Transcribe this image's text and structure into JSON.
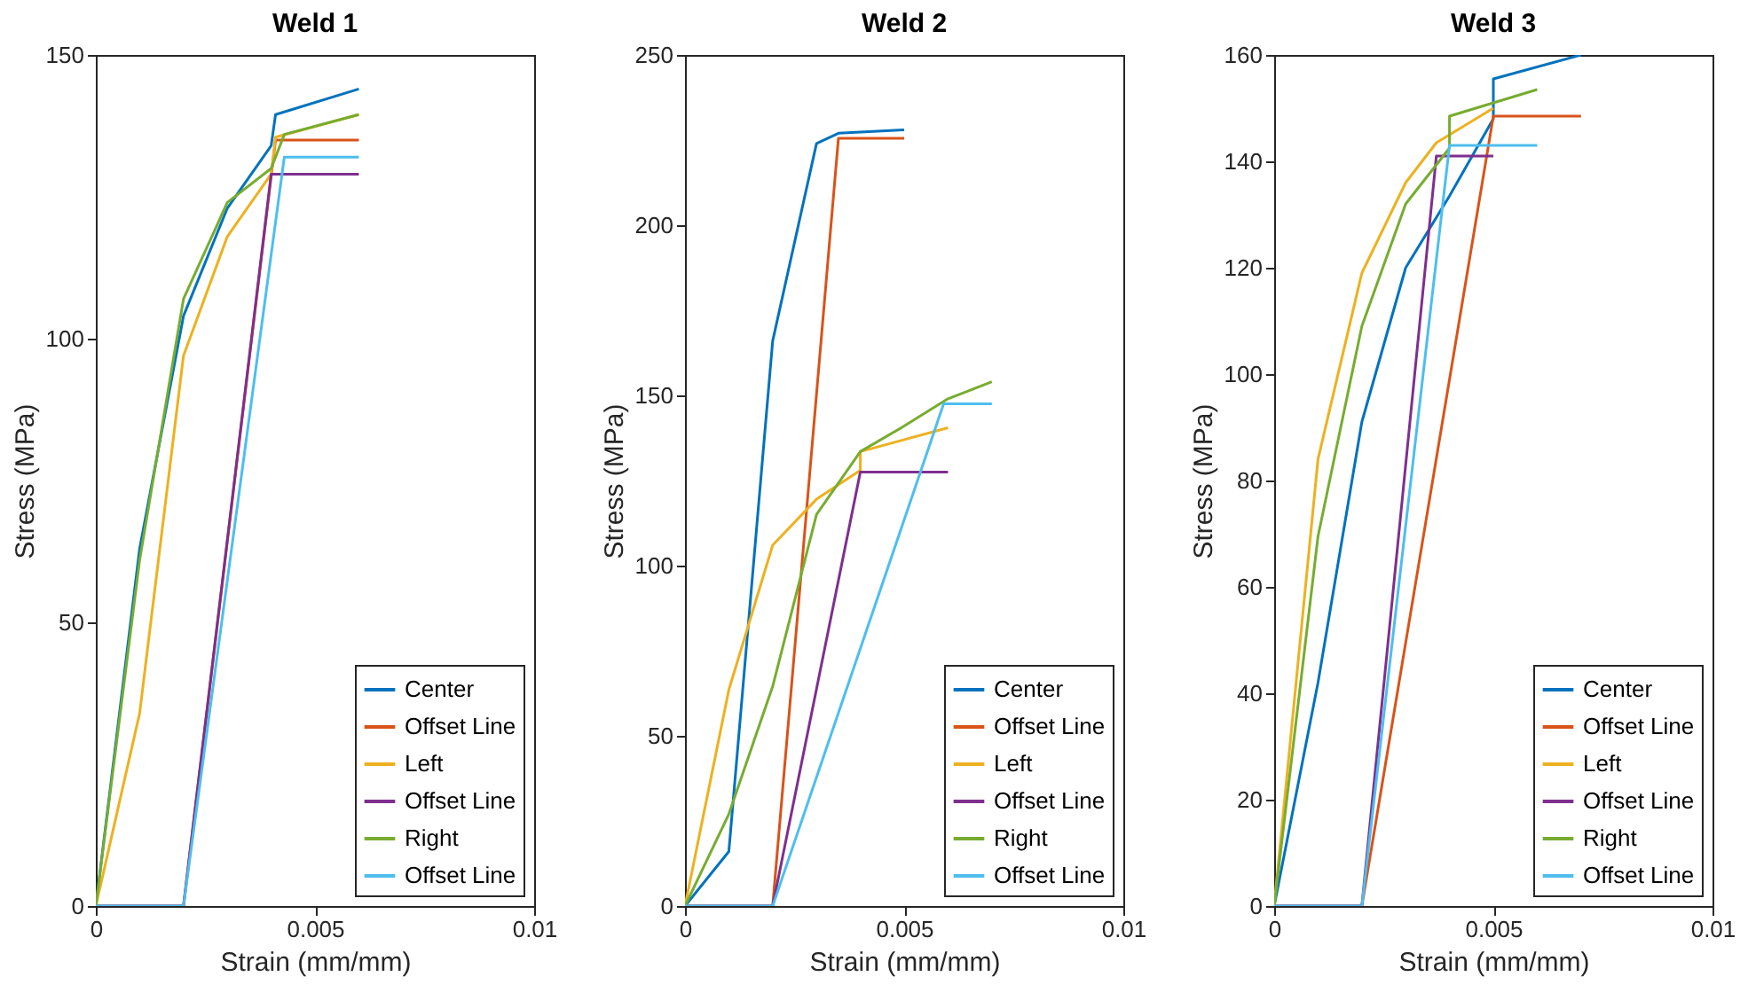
{
  "chart_data": [
    {
      "type": "line",
      "title": "Weld 1",
      "xlabel": "Strain (mm/mm)",
      "ylabel": "Stress (MPa)",
      "xlim": [
        0,
        0.01
      ],
      "xticks": [
        0,
        0.005,
        0.01
      ],
      "ylim": [
        0,
        150
      ],
      "yticks": [
        0,
        50,
        100,
        150
      ],
      "legend": "bottom right",
      "series": [
        {
          "name": "Center",
          "color": "#0072bd",
          "x": [
            0,
            0.001,
            0.002,
            0.003,
            0.004,
            0.0041,
            0.006
          ],
          "values": [
            0,
            63,
            104,
            123,
            134,
            139.5,
            144
          ]
        },
        {
          "name": "Offset Line",
          "color": "#d95319",
          "x": [
            0,
            0.002,
            0.0041,
            0.006
          ],
          "values": [
            0,
            0,
            135,
            135
          ]
        },
        {
          "name": "Left",
          "color": "#edb120",
          "x": [
            0,
            0.001,
            0.002,
            0.003,
            0.004,
            0.0041,
            0.006
          ],
          "values": [
            0,
            34,
            97,
            118,
            129,
            135.5,
            139.5
          ]
        },
        {
          "name": "Offset Line",
          "color": "#7e2f8e",
          "x": [
            0,
            0.002,
            0.004,
            0.006
          ],
          "values": [
            0,
            0,
            129,
            129
          ]
        },
        {
          "name": "Right",
          "color": "#77ac30",
          "x": [
            0,
            0.001,
            0.002,
            0.003,
            0.004,
            0.0043,
            0.006
          ],
          "values": [
            0,
            61,
            107,
            124,
            130,
            136,
            139.5
          ]
        },
        {
          "name": "Offset Line",
          "color": "#4dbeee",
          "x": [
            0,
            0.002,
            0.0043,
            0.006
          ],
          "values": [
            0,
            0,
            132,
            132
          ]
        }
      ]
    },
    {
      "type": "line",
      "title": "Weld 2",
      "xlabel": "Strain (mm/mm)",
      "ylabel": "Stress (MPa)",
      "xlim": [
        0,
        0.01
      ],
      "xticks": [
        0,
        0.005,
        0.01
      ],
      "ylim": [
        0,
        250
      ],
      "yticks": [
        0,
        50,
        100,
        150,
        200,
        250
      ],
      "legend": "bottom right",
      "series": [
        {
          "name": "Center",
          "color": "#0072bd",
          "x": [
            0,
            0.001,
            0.002,
            0.003,
            0.0035,
            0.005
          ],
          "values": [
            0,
            16,
            166,
            224,
            227,
            228
          ]
        },
        {
          "name": "Offset Line",
          "color": "#d95319",
          "x": [
            0,
            0.002,
            0.0035,
            0.005
          ],
          "values": [
            0,
            0,
            225.5,
            225.5
          ]
        },
        {
          "name": "Left",
          "color": "#edb120",
          "x": [
            0,
            0.001,
            0.002,
            0.003,
            0.004,
            0.004,
            0.006
          ],
          "values": [
            0,
            63.5,
            106,
            119.5,
            128,
            133.5,
            140.5
          ]
        },
        {
          "name": "Offset Line",
          "color": "#7e2f8e",
          "x": [
            0,
            0.002,
            0.004,
            0.006
          ],
          "values": [
            0,
            0,
            127.5,
            127.5
          ]
        },
        {
          "name": "Right",
          "color": "#77ac30",
          "x": [
            0,
            0.001,
            0.002,
            0.003,
            0.004,
            0.005,
            0.006,
            0.007
          ],
          "values": [
            0,
            27,
            64.5,
            115,
            133.5,
            141,
            149,
            154
          ]
        },
        {
          "name": "Offset Line",
          "color": "#4dbeee",
          "x": [
            0,
            0.002,
            0.0059,
            0.007
          ],
          "values": [
            0,
            0,
            147.5,
            147.5
          ]
        }
      ]
    },
    {
      "type": "line",
      "title": "Weld 3",
      "xlabel": "Strain (mm/mm)",
      "ylabel": "Stress (MPa)",
      "xlim": [
        0,
        0.01
      ],
      "xticks": [
        0,
        0.005,
        0.01
      ],
      "ylim": [
        0,
        160
      ],
      "yticks": [
        0,
        20,
        40,
        60,
        80,
        100,
        120,
        140,
        160
      ],
      "legend": "bottom right",
      "series": [
        {
          "name": "Center",
          "color": "#0072bd",
          "x": [
            0,
            0.001,
            0.002,
            0.003,
            0.004,
            0.005,
            0.005,
            0.007
          ],
          "values": [
            0,
            42,
            91,
            120,
            133.5,
            148,
            155.5,
            160
          ]
        },
        {
          "name": "Offset Line",
          "color": "#d95319",
          "x": [
            0,
            0.002,
            0.005,
            0.007
          ],
          "values": [
            0,
            0,
            148.5,
            148.5
          ]
        },
        {
          "name": "Left",
          "color": "#edb120",
          "x": [
            0,
            0.001,
            0.002,
            0.003,
            0.0037,
            0.005
          ],
          "values": [
            0,
            84,
            119,
            136,
            143.5,
            150
          ]
        },
        {
          "name": "Offset Line",
          "color": "#7e2f8e",
          "x": [
            0,
            0.002,
            0.0037,
            0.005
          ],
          "values": [
            0,
            0,
            141,
            141
          ]
        },
        {
          "name": "Right",
          "color": "#77ac30",
          "x": [
            0,
            0.001,
            0.002,
            0.003,
            0.004,
            0.004,
            0.005,
            0.006
          ],
          "values": [
            0,
            69.5,
            109,
            132,
            142.5,
            148.5,
            151,
            153.5
          ]
        },
        {
          "name": "Offset Line",
          "color": "#4dbeee",
          "x": [
            0,
            0.002,
            0.004,
            0.006
          ],
          "values": [
            0,
            0,
            143,
            143
          ]
        }
      ]
    }
  ]
}
